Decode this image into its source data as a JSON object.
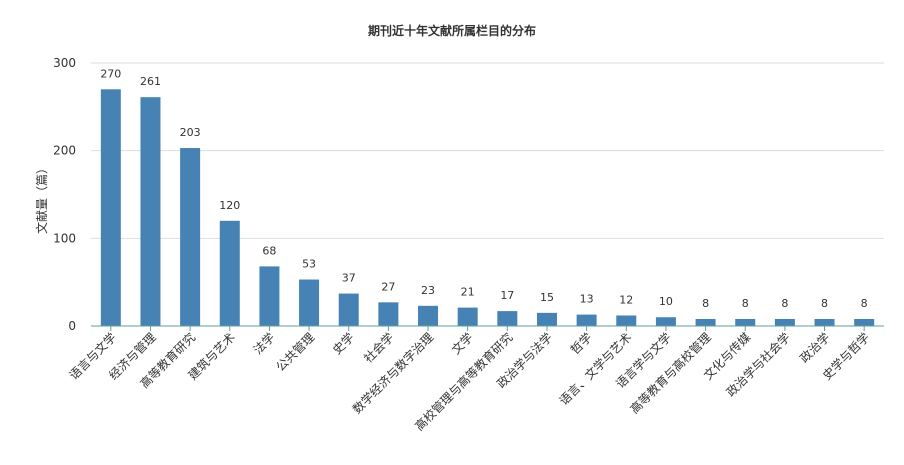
{
  "chart_data": {
    "type": "bar",
    "title": "期刊近十年文献所属栏目的分布",
    "xlabel": "",
    "ylabel": "文献量（篇）",
    "ylim": [
      0,
      300
    ],
    "yticks": [
      0,
      100,
      200,
      300
    ],
    "grid": true,
    "color": "#4682b4",
    "categories": [
      "语言与文学",
      "经济与管理",
      "高等教育研究",
      "建筑与艺术",
      "法学",
      "公共管理",
      "史学",
      "社会学",
      "数学经济与数字治理",
      "文学",
      "高校管理与高等教育研究",
      "政治学与法学",
      "哲学",
      "语言、文学与艺术",
      "语言学与文学",
      "高等教育与高校管理",
      "文化与传媒",
      "政治学与社会学",
      "政治学",
      "史学与哲学"
    ],
    "values": [
      270,
      261,
      203,
      120,
      68,
      53,
      37,
      27,
      23,
      21,
      17,
      15,
      13,
      12,
      10,
      8,
      8,
      8,
      8,
      8
    ]
  }
}
